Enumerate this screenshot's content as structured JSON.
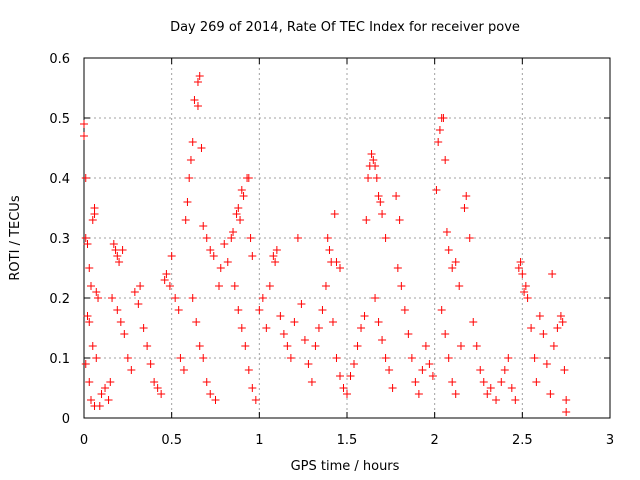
{
  "chart_data": {
    "type": "scatter",
    "title": "Day 269 of 2014, Rate Of TEC Index for receiver pove",
    "xlabel": "GPS time / hours",
    "ylabel": "ROTI / TECUs",
    "xlim": [
      0,
      3
    ],
    "ylim": [
      0,
      0.6
    ],
    "xticks": [
      0,
      0.5,
      1,
      1.5,
      2,
      2.5,
      3
    ],
    "xtick_labels": [
      "0",
      "0.5",
      "1",
      "1.5",
      "2",
      "2.5",
      "3"
    ],
    "yticks": [
      0,
      0.1,
      0.2,
      0.3,
      0.4,
      0.5,
      0.6
    ],
    "ytick_labels": [
      "0",
      "0.1",
      "0.2",
      "0.3",
      "0.4",
      "0.5",
      "0.6"
    ],
    "grid": true,
    "marker": "+",
    "marker_color": "#ff0000",
    "series": [
      {
        "name": "ROTI",
        "points": [
          [
            0.0,
            0.47
          ],
          [
            0.0,
            0.49
          ],
          [
            0.01,
            0.4
          ],
          [
            0.01,
            0.3
          ],
          [
            0.02,
            0.29
          ],
          [
            0.03,
            0.25
          ],
          [
            0.05,
            0.33
          ],
          [
            0.06,
            0.35
          ],
          [
            0.06,
            0.34
          ],
          [
            0.04,
            0.22
          ],
          [
            0.07,
            0.21
          ],
          [
            0.08,
            0.2
          ],
          [
            0.02,
            0.17
          ],
          [
            0.03,
            0.16
          ],
          [
            0.05,
            0.12
          ],
          [
            0.07,
            0.1
          ],
          [
            0.01,
            0.09
          ],
          [
            0.03,
            0.06
          ],
          [
            0.04,
            0.03
          ],
          [
            0.06,
            0.02
          ],
          [
            0.09,
            0.02
          ],
          [
            0.1,
            0.04
          ],
          [
            0.12,
            0.05
          ],
          [
            0.14,
            0.03
          ],
          [
            0.15,
            0.06
          ],
          [
            0.17,
            0.29
          ],
          [
            0.18,
            0.28
          ],
          [
            0.19,
            0.27
          ],
          [
            0.2,
            0.26
          ],
          [
            0.22,
            0.28
          ],
          [
            0.16,
            0.2
          ],
          [
            0.19,
            0.18
          ],
          [
            0.21,
            0.16
          ],
          [
            0.23,
            0.14
          ],
          [
            0.25,
            0.1
          ],
          [
            0.27,
            0.08
          ],
          [
            0.29,
            0.21
          ],
          [
            0.31,
            0.19
          ],
          [
            0.32,
            0.22
          ],
          [
            0.34,
            0.15
          ],
          [
            0.36,
            0.12
          ],
          [
            0.38,
            0.09
          ],
          [
            0.4,
            0.06
          ],
          [
            0.42,
            0.05
          ],
          [
            0.44,
            0.04
          ],
          [
            0.46,
            0.23
          ],
          [
            0.47,
            0.24
          ],
          [
            0.49,
            0.22
          ],
          [
            0.5,
            0.27
          ],
          [
            0.52,
            0.2
          ],
          [
            0.54,
            0.18
          ],
          [
            0.55,
            0.1
          ],
          [
            0.57,
            0.08
          ],
          [
            0.58,
            0.33
          ],
          [
            0.59,
            0.36
          ],
          [
            0.6,
            0.4
          ],
          [
            0.61,
            0.43
          ],
          [
            0.62,
            0.46
          ],
          [
            0.63,
            0.53
          ],
          [
            0.65,
            0.56
          ],
          [
            0.66,
            0.57
          ],
          [
            0.65,
            0.52
          ],
          [
            0.67,
            0.45
          ],
          [
            0.68,
            0.32
          ],
          [
            0.7,
            0.3
          ],
          [
            0.72,
            0.28
          ],
          [
            0.74,
            0.27
          ],
          [
            0.62,
            0.2
          ],
          [
            0.64,
            0.16
          ],
          [
            0.66,
            0.12
          ],
          [
            0.68,
            0.1
          ],
          [
            0.7,
            0.06
          ],
          [
            0.72,
            0.04
          ],
          [
            0.75,
            0.03
          ],
          [
            0.77,
            0.22
          ],
          [
            0.78,
            0.25
          ],
          [
            0.8,
            0.29
          ],
          [
            0.82,
            0.26
          ],
          [
            0.84,
            0.3
          ],
          [
            0.85,
            0.31
          ],
          [
            0.87,
            0.34
          ],
          [
            0.88,
            0.35
          ],
          [
            0.89,
            0.33
          ],
          [
            0.9,
            0.38
          ],
          [
            0.91,
            0.37
          ],
          [
            0.93,
            0.4
          ],
          [
            0.94,
            0.4
          ],
          [
            0.95,
            0.3
          ],
          [
            0.96,
            0.27
          ],
          [
            0.86,
            0.22
          ],
          [
            0.88,
            0.18
          ],
          [
            0.9,
            0.15
          ],
          [
            0.92,
            0.12
          ],
          [
            0.94,
            0.08
          ],
          [
            0.96,
            0.05
          ],
          [
            0.98,
            0.03
          ],
          [
            1.0,
            0.18
          ],
          [
            1.02,
            0.2
          ],
          [
            1.04,
            0.15
          ],
          [
            1.06,
            0.22
          ],
          [
            1.08,
            0.27
          ],
          [
            1.09,
            0.26
          ],
          [
            1.1,
            0.28
          ],
          [
            1.12,
            0.17
          ],
          [
            1.14,
            0.14
          ],
          [
            1.16,
            0.12
          ],
          [
            1.18,
            0.1
          ],
          [
            1.2,
            0.16
          ],
          [
            1.22,
            0.3
          ],
          [
            1.24,
            0.19
          ],
          [
            1.26,
            0.13
          ],
          [
            1.28,
            0.09
          ],
          [
            1.3,
            0.06
          ],
          [
            1.32,
            0.12
          ],
          [
            1.34,
            0.15
          ],
          [
            1.36,
            0.18
          ],
          [
            1.38,
            0.22
          ],
          [
            1.39,
            0.3
          ],
          [
            1.4,
            0.28
          ],
          [
            1.41,
            0.26
          ],
          [
            1.43,
            0.34
          ],
          [
            1.44,
            0.26
          ],
          [
            1.46,
            0.25
          ],
          [
            1.42,
            0.16
          ],
          [
            1.44,
            0.1
          ],
          [
            1.46,
            0.07
          ],
          [
            1.48,
            0.05
          ],
          [
            1.5,
            0.04
          ],
          [
            1.52,
            0.07
          ],
          [
            1.54,
            0.09
          ],
          [
            1.56,
            0.12
          ],
          [
            1.58,
            0.15
          ],
          [
            1.6,
            0.17
          ],
          [
            1.61,
            0.33
          ],
          [
            1.62,
            0.4
          ],
          [
            1.63,
            0.42
          ],
          [
            1.64,
            0.44
          ],
          [
            1.65,
            0.43
          ],
          [
            1.66,
            0.42
          ],
          [
            1.67,
            0.4
          ],
          [
            1.68,
            0.37
          ],
          [
            1.69,
            0.36
          ],
          [
            1.7,
            0.34
          ],
          [
            1.72,
            0.3
          ],
          [
            1.66,
            0.2
          ],
          [
            1.68,
            0.16
          ],
          [
            1.7,
            0.13
          ],
          [
            1.72,
            0.1
          ],
          [
            1.74,
            0.08
          ],
          [
            1.76,
            0.05
          ],
          [
            1.78,
            0.37
          ],
          [
            1.8,
            0.33
          ],
          [
            1.79,
            0.25
          ],
          [
            1.81,
            0.22
          ],
          [
            1.83,
            0.18
          ],
          [
            1.85,
            0.14
          ],
          [
            1.87,
            0.1
          ],
          [
            1.89,
            0.06
          ],
          [
            1.91,
            0.04
          ],
          [
            1.93,
            0.08
          ],
          [
            1.95,
            0.12
          ],
          [
            1.97,
            0.09
          ],
          [
            1.99,
            0.07
          ],
          [
            2.01,
            0.38
          ],
          [
            2.02,
            0.46
          ],
          [
            2.03,
            0.48
          ],
          [
            2.04,
            0.5
          ],
          [
            2.05,
            0.5
          ],
          [
            2.06,
            0.43
          ],
          [
            2.07,
            0.31
          ],
          [
            2.08,
            0.28
          ],
          [
            2.1,
            0.25
          ],
          [
            2.12,
            0.26
          ],
          [
            2.14,
            0.22
          ],
          [
            2.04,
            0.18
          ],
          [
            2.06,
            0.14
          ],
          [
            2.08,
            0.1
          ],
          [
            2.1,
            0.06
          ],
          [
            2.12,
            0.04
          ],
          [
            2.15,
            0.12
          ],
          [
            2.17,
            0.35
          ],
          [
            2.18,
            0.37
          ],
          [
            2.2,
            0.3
          ],
          [
            2.22,
            0.16
          ],
          [
            2.24,
            0.12
          ],
          [
            2.26,
            0.08
          ],
          [
            2.28,
            0.06
          ],
          [
            2.3,
            0.04
          ],
          [
            2.32,
            0.05
          ],
          [
            2.35,
            0.03
          ],
          [
            2.38,
            0.06
          ],
          [
            2.4,
            0.08
          ],
          [
            2.42,
            0.1
          ],
          [
            2.44,
            0.05
          ],
          [
            2.46,
            0.03
          ],
          [
            2.48,
            0.25
          ],
          [
            2.49,
            0.26
          ],
          [
            2.5,
            0.24
          ],
          [
            2.51,
            0.21
          ],
          [
            2.52,
            0.22
          ],
          [
            2.53,
            0.2
          ],
          [
            2.55,
            0.15
          ],
          [
            2.57,
            0.1
          ],
          [
            2.58,
            0.06
          ],
          [
            2.6,
            0.17
          ],
          [
            2.62,
            0.14
          ],
          [
            2.64,
            0.09
          ],
          [
            2.66,
            0.04
          ],
          [
            2.67,
            0.24
          ],
          [
            2.68,
            0.12
          ],
          [
            2.7,
            0.15
          ],
          [
            2.72,
            0.17
          ],
          [
            2.73,
            0.16
          ],
          [
            2.74,
            0.08
          ],
          [
            2.75,
            0.03
          ],
          [
            2.75,
            0.01
          ]
        ]
      }
    ]
  }
}
